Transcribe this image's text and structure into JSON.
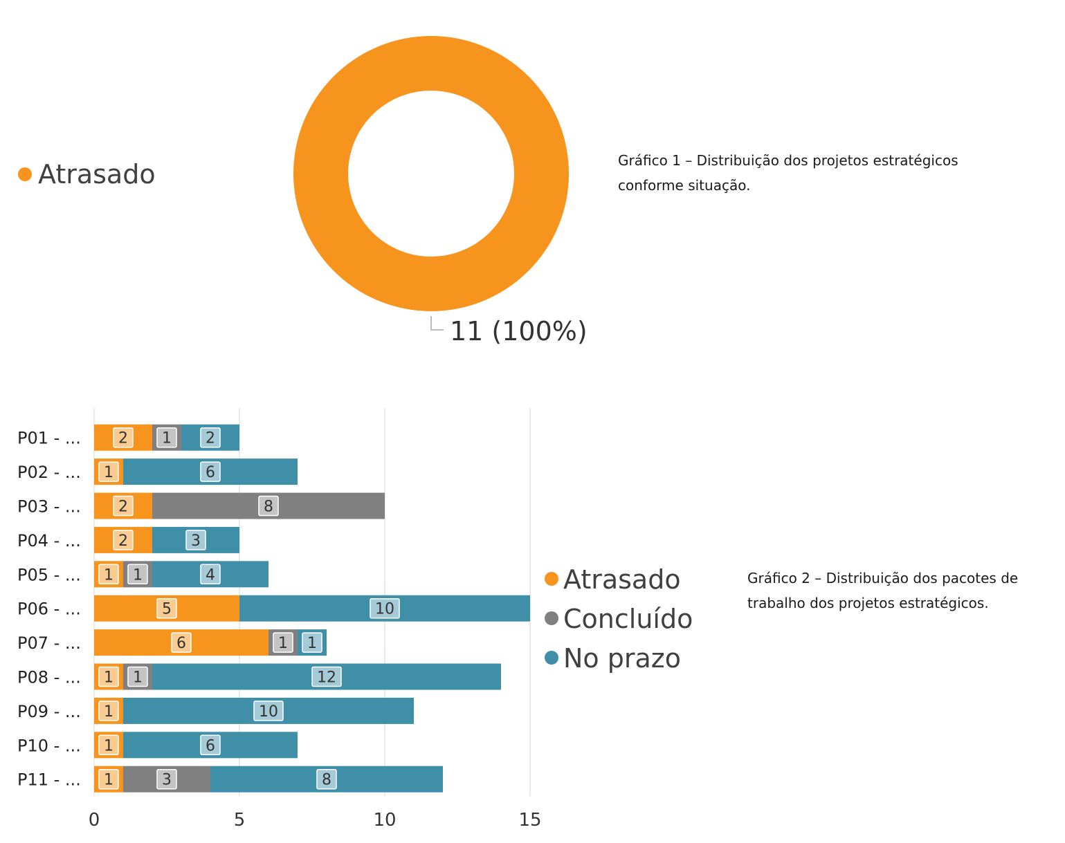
{
  "chart_data": [
    {
      "type": "pie",
      "style": "donut",
      "legend": [
        "Atrasado"
      ],
      "legend_position": "left",
      "slices": [
        {
          "label": "Atrasado",
          "value": 11,
          "percent": 100,
          "color": "#F7941D",
          "data_label": "11 (100%)"
        }
      ]
    },
    {
      "type": "bar",
      "orientation": "horizontal",
      "stacked": true,
      "categories": [
        "P01 - ...",
        "P02 - ...",
        "P03 - ...",
        "P04 - ...",
        "P05 - ...",
        "P06 - ...",
        "P07 - ...",
        "P08 - ...",
        "P09 - ...",
        "P10 - ...",
        "P11 - ..."
      ],
      "series": [
        {
          "name": "Atrasado",
          "color": "#F7941D",
          "values": [
            2,
            1,
            2,
            2,
            1,
            5,
            6,
            1,
            1,
            1,
            1
          ]
        },
        {
          "name": "Concluído",
          "color": "#808080",
          "values": [
            1,
            0,
            8,
            0,
            1,
            0,
            1,
            1,
            0,
            0,
            3
          ]
        },
        {
          "name": "No prazo",
          "color": "#3F8FA8",
          "values": [
            2,
            6,
            0,
            3,
            4,
            10,
            1,
            12,
            10,
            6,
            8
          ]
        }
      ],
      "xlim": [
        0,
        15
      ],
      "xticks": [
        "0",
        "5",
        "10",
        "15"
      ],
      "grid": true,
      "legend": [
        "Atrasado",
        "Concluído",
        "No prazo"
      ],
      "legend_position": "right"
    }
  ],
  "captions": {
    "chart1_lines": [
      "Gráfico 1 – Distribuição dos projetos estratégicos",
      "conforme situação."
    ],
    "chart2_lines": [
      "Gráfico 2 – Distribuição dos pacotes de",
      "trabalho dos projetos estratégicos."
    ]
  }
}
